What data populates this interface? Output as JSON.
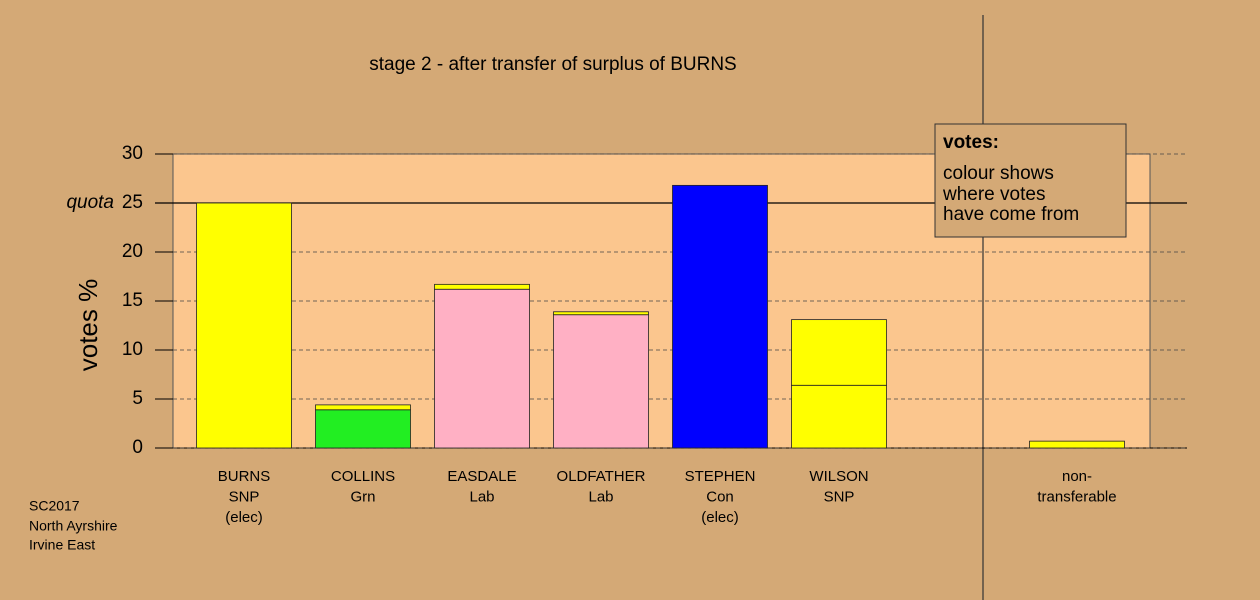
{
  "chart_data": {
    "type": "stacked-bar",
    "title": "stage 2 - after transfer of surplus of BURNS",
    "y_label": "votes %",
    "categories": [
      [
        "BURNS",
        "SNP",
        "(elec)"
      ],
      [
        "COLLINS",
        "Grn"
      ],
      [
        "EASDALE",
        "Lab"
      ],
      [
        "OLDFATHER",
        "Lab"
      ],
      [
        "STEPHEN",
        "Con",
        "(elec)"
      ],
      [
        "WILSON",
        "SNP"
      ],
      [
        "non-",
        "transferable"
      ]
    ],
    "series": [
      {
        "colors": [
          "#ffff00",
          "#22ee22",
          "#ffb0c4",
          "#ffb0c4",
          "#0000ff",
          "#ffff00",
          "#ffff00"
        ],
        "values": [
          25,
          3.9,
          16.2,
          13.6,
          26.8,
          6.4,
          0
        ]
      },
      {
        "color": "#ffff00",
        "values": [
          0,
          0.5,
          0.5,
          0.3,
          0,
          6.7,
          0.7
        ]
      }
    ],
    "ylim": [
      0,
      30
    ],
    "yticks": [
      0,
      5,
      10,
      15,
      20,
      25,
      30
    ],
    "quota": {
      "value": 25,
      "label": "quota"
    },
    "grid": true,
    "legend_box": {
      "title": "votes:",
      "lines": [
        "colour shows",
        "where votes",
        "have come from"
      ]
    },
    "footnote": [
      "SC2017",
      "North Ayrshire",
      "Irvine East"
    ]
  }
}
